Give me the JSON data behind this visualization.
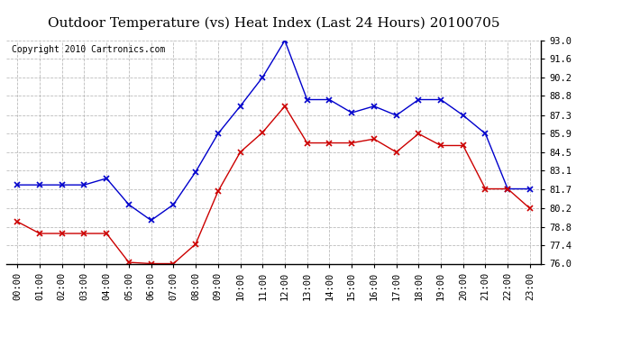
{
  "title": "Outdoor Temperature (vs) Heat Index (Last 24 Hours) 20100705",
  "copyright": "Copyright 2010 Cartronics.com",
  "hours": [
    "00:00",
    "01:00",
    "02:00",
    "03:00",
    "04:00",
    "05:00",
    "06:00",
    "07:00",
    "08:00",
    "09:00",
    "10:00",
    "11:00",
    "12:00",
    "13:00",
    "14:00",
    "15:00",
    "16:00",
    "17:00",
    "18:00",
    "19:00",
    "20:00",
    "21:00",
    "22:00",
    "23:00"
  ],
  "blue_data": [
    82.0,
    82.0,
    82.0,
    82.0,
    82.5,
    80.5,
    79.3,
    80.5,
    83.0,
    85.9,
    88.0,
    90.2,
    93.0,
    88.5,
    88.5,
    87.5,
    88.0,
    87.3,
    88.5,
    88.5,
    87.3,
    85.9,
    81.7,
    81.7
  ],
  "red_data": [
    79.2,
    78.3,
    78.3,
    78.3,
    78.3,
    76.1,
    76.0,
    76.0,
    77.5,
    81.5,
    84.5,
    86.0,
    88.0,
    85.2,
    85.2,
    85.2,
    85.5,
    84.5,
    85.9,
    85.0,
    85.0,
    81.7,
    81.7,
    80.2
  ],
  "ylim_min": 76.0,
  "ylim_max": 93.0,
  "yticks": [
    76.0,
    77.4,
    78.8,
    80.2,
    81.7,
    83.1,
    84.5,
    85.9,
    87.3,
    88.8,
    90.2,
    91.6,
    93.0
  ],
  "blue_color": "#0000cc",
  "red_color": "#cc0000",
  "bg_color": "#ffffff",
  "grid_color": "#bbbbbb",
  "title_fontsize": 11,
  "copyright_fontsize": 7,
  "tick_fontsize": 7.5
}
